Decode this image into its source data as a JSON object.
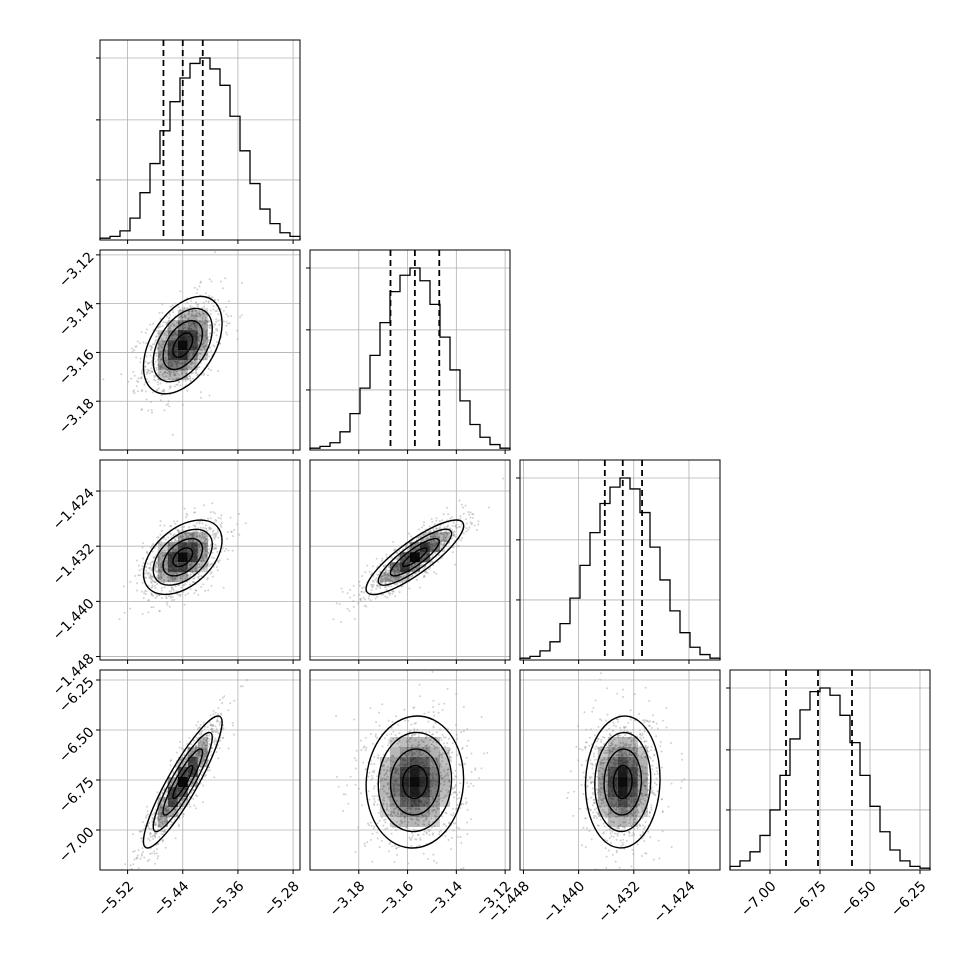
{
  "chart_data": {
    "type": "corner",
    "parameters": [
      {
        "range": [
          -5.56,
          -5.27
        ],
        "ticks": [
          "−5.52",
          "−5.44",
          "−5.36",
          "−5.28"
        ],
        "tick_values": [
          -5.52,
          -5.44,
          -5.36,
          -5.28
        ],
        "quantiles": [
          -5.468,
          -5.44,
          -5.411
        ],
        "hist": [
          0.01,
          0.02,
          0.05,
          0.12,
          0.26,
          0.42,
          0.6,
          0.76,
          0.89,
          0.97,
          1.0,
          0.94,
          0.85,
          0.68,
          0.49,
          0.31,
          0.17,
          0.09,
          0.04,
          0.02
        ]
      },
      {
        "range": [
          -3.2,
          -3.118
        ],
        "ticks": [
          "−3.18",
          "−3.16",
          "−3.14",
          "−3.12"
        ],
        "tick_values": [
          -3.18,
          -3.16,
          -3.14,
          -3.12
        ],
        "quantiles": [
          -3.167,
          -3.157,
          -3.147
        ],
        "hist": [
          0.01,
          0.02,
          0.04,
          0.1,
          0.2,
          0.34,
          0.52,
          0.7,
          0.87,
          0.96,
          1.0,
          0.93,
          0.8,
          0.62,
          0.44,
          0.27,
          0.14,
          0.07,
          0.03,
          0.01
        ]
      },
      {
        "range": [
          -1.4485,
          -1.4195
        ],
        "ticks": [
          "−1.448",
          "−1.440",
          "−1.432",
          "−1.424"
        ],
        "tick_values": [
          -1.448,
          -1.44,
          -1.432,
          -1.424
        ],
        "quantiles": [
          -1.4362,
          -1.4336,
          -1.4308
        ],
        "hist": [
          0.01,
          0.02,
          0.05,
          0.1,
          0.2,
          0.34,
          0.52,
          0.7,
          0.86,
          0.95,
          1.0,
          0.94,
          0.81,
          0.62,
          0.44,
          0.27,
          0.15,
          0.07,
          0.03,
          0.01
        ]
      },
      {
        "range": [
          -7.2,
          -6.2
        ],
        "ticks": [
          "−7.00",
          "−6.75",
          "−6.50",
          "−6.25"
        ],
        "tick_values": [
          -7.0,
          -6.75,
          -6.5,
          -6.25
        ],
        "quantiles": [
          -6.92,
          -6.76,
          -6.59
        ],
        "hist": [
          0.02,
          0.05,
          0.1,
          0.19,
          0.33,
          0.52,
          0.72,
          0.88,
          0.98,
          1.0,
          0.96,
          0.85,
          0.7,
          0.52,
          0.35,
          0.21,
          0.11,
          0.05,
          0.02,
          0.01
        ]
      }
    ],
    "correlations": [
      [
        1.0,
        0.45,
        0.45,
        0.9
      ],
      [
        0.45,
        1.0,
        0.85,
        0.05
      ],
      [
        0.45,
        0.85,
        1.0,
        0.05
      ],
      [
        0.9,
        0.05,
        0.05,
        1.0
      ]
    ],
    "contour_levels_sigma": [
      0.5,
      1.0,
      1.5,
      2.0
    ],
    "grid": true,
    "colors": {
      "contour": "#000000",
      "density": "#000000",
      "points": "#9a9a9a",
      "grid": "#b0b0b0",
      "frame": "#000000",
      "background": "#ffffff"
    }
  }
}
